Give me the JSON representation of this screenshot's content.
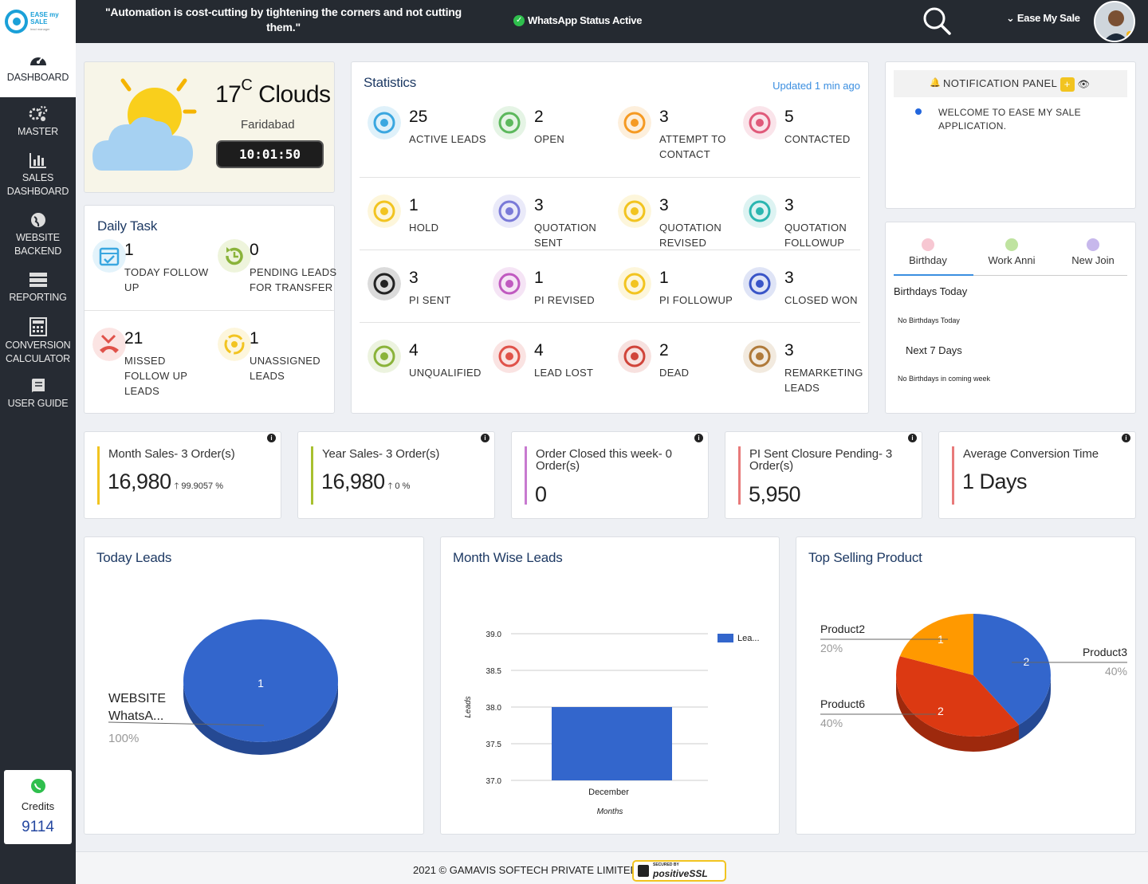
{
  "header": {
    "logo_text": "EASE my SALE",
    "logo_tagline": "lead manager",
    "quote": "\"Automation is cost-cutting by tightening the corners and not cutting them.\"",
    "whatsapp_status": "WhatsApp Status Active",
    "user_name": "Ease My Sale"
  },
  "sidebar": {
    "items": [
      {
        "label": "DASHBOARD",
        "icon": "dashboard-icon"
      },
      {
        "label": "MASTER",
        "icon": "gears-icon"
      },
      {
        "label": "SALES DASHBOARD",
        "icon": "bar-chart-icon"
      },
      {
        "label": "WEBSITE BACKEND",
        "icon": "globe-icon"
      },
      {
        "label": "REPORTING",
        "icon": "report-icon"
      },
      {
        "label": "CONVERSION CALCULATOR",
        "icon": "calculator-icon"
      },
      {
        "label": "USER GUIDE",
        "icon": "book-icon"
      }
    ],
    "credits_label": "Credits",
    "credits_value": "9114"
  },
  "weather": {
    "temp": "17",
    "unit": "C",
    "condition": "Clouds",
    "city": "Faridabad",
    "time": "10:01:50"
  },
  "daily_task": {
    "title": "Daily Task",
    "items": [
      {
        "count": "1",
        "label": "TODAY FOLLOW UP",
        "color": "#3aa7e0"
      },
      {
        "count": "0",
        "label": "PENDING LEADS FOR TRANSFER",
        "color": "#8ab33a"
      },
      {
        "count": "21",
        "label": "MISSED FOLLOW UP LEADS",
        "color": "#e0524a"
      },
      {
        "count": "1",
        "label": "UNASSIGNED LEADS",
        "color": "#f2c420"
      }
    ]
  },
  "statistics": {
    "title": "Statistics",
    "updated": "Updated 1 min ago",
    "items": [
      {
        "count": "25",
        "label": "ACTIVE LEADS",
        "color": "#3aa7e0"
      },
      {
        "count": "2",
        "label": "OPEN",
        "color": "#5cb85c"
      },
      {
        "count": "3",
        "label": "ATTEMPT TO CONTACT",
        "color": "#f59a23"
      },
      {
        "count": "5",
        "label": "CONTACTED",
        "color": "#e05a7a"
      },
      {
        "count": "1",
        "label": "HOLD",
        "color": "#f2c420"
      },
      {
        "count": "3",
        "label": "QUOTATION SENT",
        "color": "#7a7ad8"
      },
      {
        "count": "3",
        "label": "QUOTATION REVISED",
        "color": "#f2c420"
      },
      {
        "count": "3",
        "label": "QUOTATION FOLLOWUP",
        "color": "#2bb6b0"
      },
      {
        "count": "3",
        "label": "PI SENT",
        "color": "#222222"
      },
      {
        "count": "1",
        "label": "PI REVISED",
        "color": "#c05ac0"
      },
      {
        "count": "1",
        "label": "PI FOLLOWUP",
        "color": "#f2c420"
      },
      {
        "count": "3",
        "label": "CLOSED WON",
        "color": "#3a55c8"
      },
      {
        "count": "4",
        "label": "UNQUALIFIED",
        "color": "#8ab33a"
      },
      {
        "count": "4",
        "label": "LEAD LOST",
        "color": "#e0524a"
      },
      {
        "count": "2",
        "label": "DEAD",
        "color": "#d0443a"
      },
      {
        "count": "3",
        "label": "REMARKETING LEADS",
        "color": "#b07a3a"
      }
    ]
  },
  "notification": {
    "title": "NOTIFICATION PANEL",
    "message": "WELCOME TO EASE MY SALE APPLICATION."
  },
  "celebrations": {
    "tabs": [
      "Birthday",
      "Work Anni",
      "New Join"
    ],
    "today_heading": "Birthdays Today",
    "today_text": "No Birthdays Today",
    "next_heading": "Next 7 Days",
    "next_text": "No Birthdays in coming week"
  },
  "kpis": [
    {
      "title": "Month Sales-  3 Order(s)",
      "value": "16,980",
      "pct": "99.9057 %",
      "color": "#f2c420"
    },
    {
      "title": "Year Sales-  3 Order(s)",
      "value": "16,980",
      "pct": "0 %",
      "color": "#a8c030"
    },
    {
      "title": "Order Closed this week-  0 Order(s)",
      "value": "0",
      "pct": "",
      "color": "#c87ad0"
    },
    {
      "title": "PI Sent Closure Pending-  3 Order(s)",
      "value": "5,950",
      "pct": "",
      "color": "#e87a7a"
    },
    {
      "title": "Average Conversion Time",
      "value": "1 Days",
      "pct": "",
      "color": "#e87a7a"
    }
  ],
  "panels": {
    "today_leads": "Today Leads",
    "month_wise": "Month Wise Leads",
    "top_selling": "Top Selling Product"
  },
  "chart_data": [
    {
      "type": "pie",
      "title": "Today Leads",
      "slices": [
        {
          "label": "WEBSITE WhatsA...",
          "value": 1,
          "percent": "100%",
          "color": "#3366cc"
        }
      ]
    },
    {
      "type": "bar",
      "title": "Month Wise Leads",
      "categories": [
        "December"
      ],
      "series": [
        {
          "name": "Lea...",
          "values": [
            38
          ]
        }
      ],
      "xlabel": "Months",
      "ylabel": "Leads",
      "ylim": [
        37,
        39
      ],
      "yticks": [
        "39.0",
        "38.5",
        "38.0",
        "37.5",
        "37.0"
      ],
      "color": "#3366cc"
    },
    {
      "type": "pie",
      "title": "Top Selling Product",
      "slices": [
        {
          "label": "Product3",
          "value": 2,
          "percent": "40%",
          "color": "#3366cc"
        },
        {
          "label": "Product6",
          "value": 2,
          "percent": "40%",
          "color": "#dc3912"
        },
        {
          "label": "Product2",
          "value": 1,
          "percent": "20%",
          "color": "#ff9900"
        }
      ]
    }
  ],
  "footer": {
    "text": "2021 © GAMAVIS SOFTECH PRIVATE LIMITED",
    "badge_top": "SECURED BY",
    "badge": "positiveSSL"
  }
}
